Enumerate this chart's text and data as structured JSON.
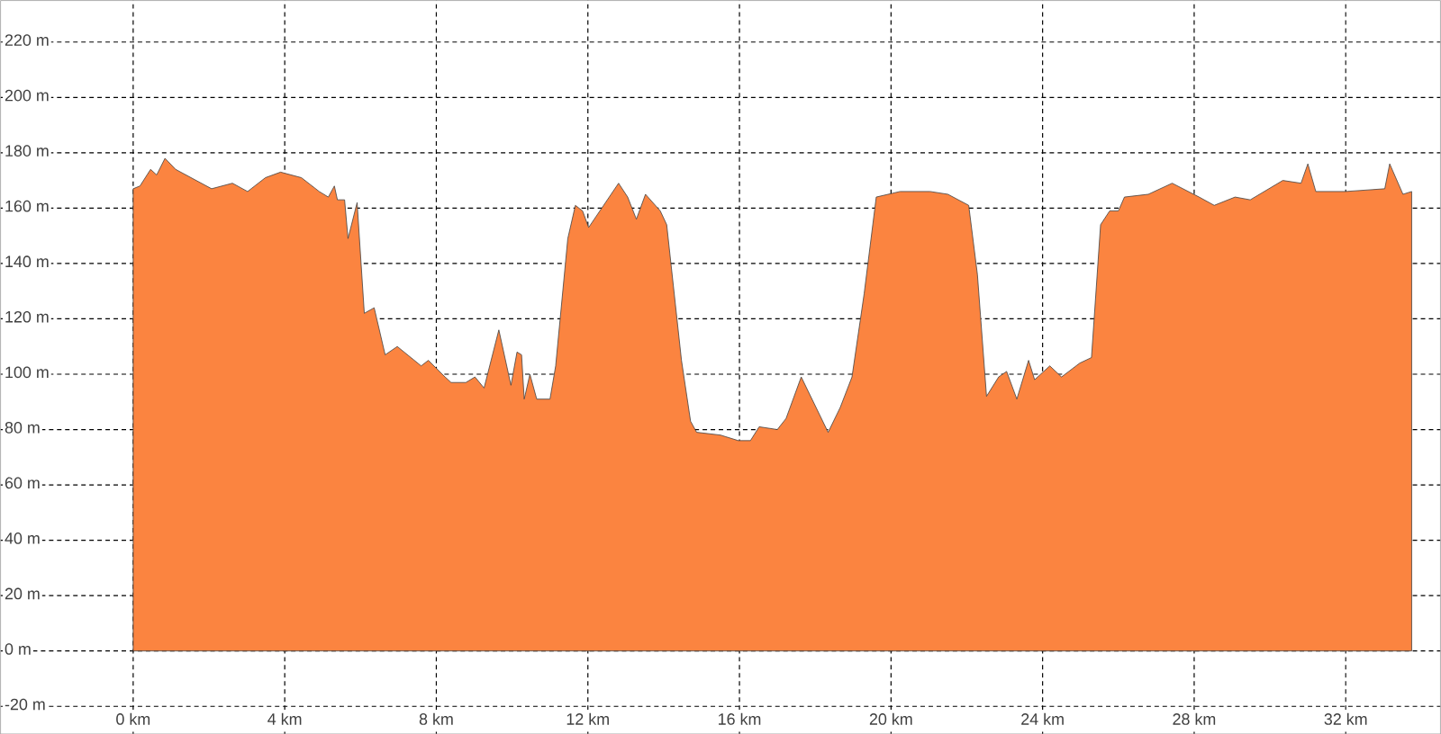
{
  "chart_data": {
    "type": "area",
    "color": "#fb8440",
    "x": [
      0,
      0.18,
      0.46,
      0.62,
      0.84,
      1.12,
      2.07,
      2.62,
      3.02,
      3.49,
      3.89,
      4.44,
      4.91,
      5.15,
      5.31,
      5.39,
      5.58,
      5.67,
      5.91,
      6.1,
      6.36,
      6.65,
      6.97,
      7.6,
      7.79,
      8.23,
      8.39,
      8.78,
      9.02,
      9.26,
      9.65,
      9.97,
      10.13,
      10.25,
      10.32,
      10.47,
      10.65,
      11.0,
      11.15,
      11.47,
      11.67,
      11.86,
      12.02,
      12.81,
      13.05,
      13.28,
      13.52,
      13.91,
      14.08,
      14.47,
      14.71,
      14.87,
      15.5,
      15.97,
      16.29,
      16.52,
      17.0,
      17.23,
      17.63,
      18.34,
      18.66,
      18.97,
      19.29,
      19.61,
      20.24,
      21.03,
      21.5,
      22.05,
      22.28,
      22.52,
      22.84,
      23.05,
      23.32,
      23.63,
      23.79,
      24.19,
      24.5,
      24.98,
      25.29,
      25.53,
      25.77,
      26.0,
      26.16,
      26.79,
      27.42,
      28.13,
      28.53,
      29.08,
      29.48,
      30.34,
      30.82,
      31.0,
      31.21,
      32.0,
      33.03,
      33.16,
      33.51,
      33.74
    ],
    "values": [
      167,
      168,
      174,
      172,
      178,
      174,
      167,
      169,
      166,
      171,
      173,
      171,
      166,
      164,
      168,
      163,
      163,
      149,
      162,
      122,
      124,
      107,
      110,
      103,
      105,
      99,
      97,
      97,
      99,
      95,
      116,
      96,
      108,
      107,
      91,
      100,
      91,
      91,
      103,
      149,
      161,
      159,
      153,
      169,
      164,
      156,
      165,
      159,
      154,
      105,
      83,
      79,
      78,
      76,
      76,
      81,
      80,
      84,
      99,
      79,
      88,
      99,
      129,
      164,
      166,
      166,
      165,
      161,
      136,
      92,
      99,
      101,
      91,
      105,
      98,
      103,
      99,
      104,
      106,
      154,
      159,
      159,
      164,
      165,
      169,
      164,
      161,
      164,
      163,
      170,
      169,
      176,
      166,
      166,
      167,
      176,
      165,
      166
    ],
    "xlim": [
      -3.5,
      34.5
    ],
    "ylim": [
      -30,
      235
    ],
    "xticks": [
      {
        "value": 0,
        "label": "0 km"
      },
      {
        "value": 4,
        "label": "4 km"
      },
      {
        "value": 8,
        "label": "8 km"
      },
      {
        "value": 12,
        "label": "12 km"
      },
      {
        "value": 16,
        "label": "16 km"
      },
      {
        "value": 20,
        "label": "20 km"
      },
      {
        "value": 24,
        "label": "24 km"
      },
      {
        "value": 28,
        "label": "28 km"
      },
      {
        "value": 32,
        "label": "32 km"
      }
    ],
    "yticks": [
      {
        "value": -20,
        "label": "-20 m"
      },
      {
        "value": 0,
        "label": "0 m"
      },
      {
        "value": 20,
        "label": "20 m"
      },
      {
        "value": 40,
        "label": "40 m"
      },
      {
        "value": 60,
        "label": "60 m"
      },
      {
        "value": 80,
        "label": "80 m"
      },
      {
        "value": 100,
        "label": "100 m"
      },
      {
        "value": 120,
        "label": "120 m"
      },
      {
        "value": 140,
        "label": "140 m"
      },
      {
        "value": 160,
        "label": "160 m"
      },
      {
        "value": 180,
        "label": "180 m"
      },
      {
        "value": 200,
        "label": "200 m"
      },
      {
        "value": 220,
        "label": "220 m"
      }
    ],
    "grid": true
  }
}
